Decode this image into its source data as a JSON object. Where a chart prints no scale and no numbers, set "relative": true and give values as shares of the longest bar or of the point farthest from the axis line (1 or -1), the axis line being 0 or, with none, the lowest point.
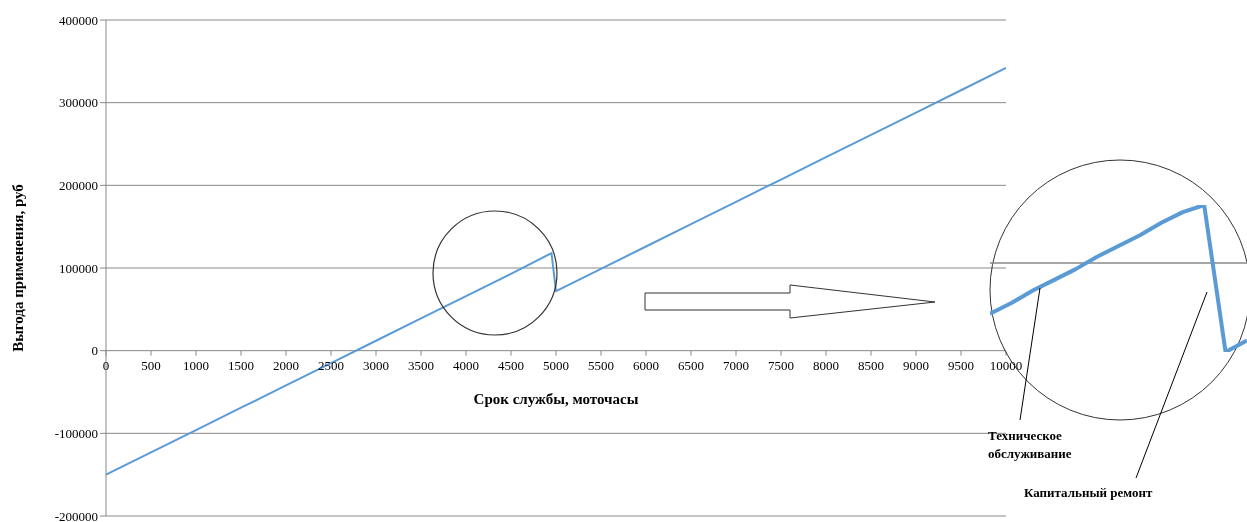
{
  "chart_data": [
    {
      "type": "line",
      "xlabel": "Срок службы, моточасы",
      "ylabel": "Выгода применения, руб",
      "x": [
        0,
        500,
        1000,
        1500,
        2000,
        2500,
        3000,
        3500,
        4000,
        4500,
        4950,
        5000,
        5500,
        6000,
        6500,
        7000,
        7500,
        8000,
        8500,
        9000,
        9500,
        10000
      ],
      "series": [
        {
          "color": "#5b9bd5",
          "values": [
            -150000,
            -123000,
            -96000,
            -69000,
            -42000,
            -15000,
            12000,
            39000,
            66000,
            93000,
            118000,
            72000,
            99000,
            126000,
            153000,
            180000,
            207000,
            234000,
            261000,
            288000,
            315000,
            342000
          ]
        }
      ],
      "xlim": [
        0,
        10000
      ],
      "xticks": [
        0,
        500,
        1000,
        1500,
        2000,
        2500,
        3000,
        3500,
        4000,
        4500,
        5000,
        5500,
        6000,
        6500,
        7000,
        7500,
        8000,
        8500,
        9000,
        9500,
        10000
      ],
      "ylim": [
        -200000,
        400000
      ],
      "yticks": [
        -200000,
        -100000,
        0,
        100000,
        200000,
        300000,
        400000
      ],
      "grid": "y",
      "marker": "none",
      "line_style": "solid",
      "legend": false
    },
    {
      "type": "line",
      "relative": true,
      "categories": [
        null,
        null,
        null,
        null,
        null,
        null,
        null,
        null,
        null,
        null,
        null,
        null,
        null
      ],
      "series": [
        {
          "color": "#5b9bd5",
          "values": [
            -0.57,
            -0.45,
            -0.31,
            -0.19,
            -0.07,
            0.07,
            0.19,
            0.31,
            0.45,
            0.57,
            0.65,
            -1,
            -0.87
          ]
        }
      ],
      "marker": "none",
      "line_style": "solid",
      "annotations": [
        "Техническое обслуживание",
        "Капитальный ремонт"
      ]
    }
  ]
}
